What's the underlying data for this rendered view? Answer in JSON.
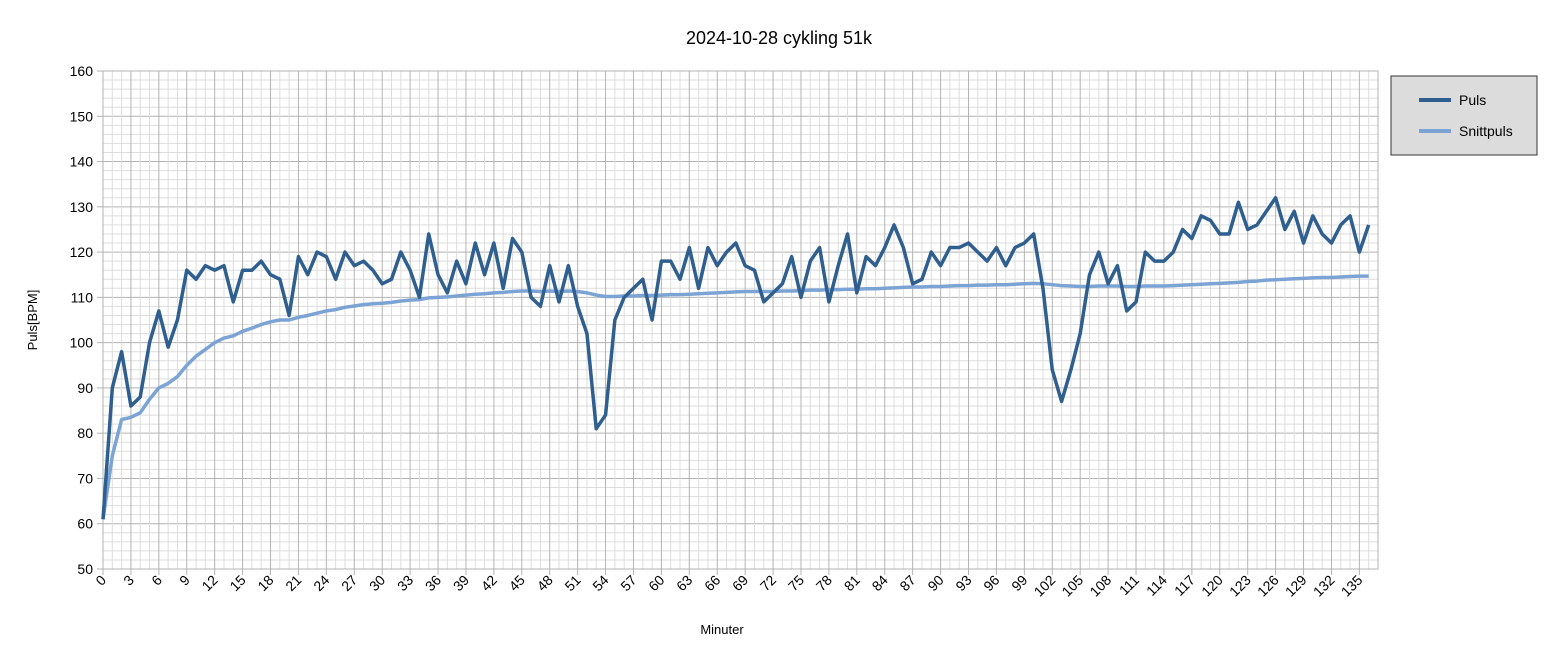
{
  "chart_data": {
    "type": "line",
    "title": "2024-10-28 cykling 51k",
    "xlabel": "Minuter",
    "ylabel": "Puls[BPM]",
    "ylim": [
      50,
      160
    ],
    "xlim": [
      0,
      137
    ],
    "yticks": [
      50,
      60,
      70,
      80,
      90,
      100,
      110,
      120,
      130,
      140,
      150,
      160
    ],
    "xticks": [
      0,
      3,
      6,
      9,
      12,
      15,
      18,
      21,
      24,
      27,
      30,
      33,
      36,
      39,
      42,
      45,
      48,
      51,
      54,
      57,
      60,
      63,
      66,
      69,
      72,
      75,
      78,
      81,
      84,
      87,
      90,
      93,
      96,
      99,
      102,
      105,
      108,
      111,
      114,
      117,
      120,
      123,
      126,
      129,
      132,
      135
    ],
    "grid": true,
    "legend_position": "right",
    "series": [
      {
        "name": "Puls",
        "color": "#2f5f8f",
        "values": [
          61,
          90,
          98,
          86,
          88,
          100,
          107,
          99,
          105,
          116,
          114,
          117,
          116,
          117,
          109,
          116,
          116,
          118,
          115,
          114,
          106,
          119,
          115,
          120,
          119,
          114,
          120,
          117,
          118,
          116,
          113,
          114,
          120,
          116,
          110,
          124,
          115,
          111,
          118,
          113,
          122,
          115,
          122,
          112,
          123,
          120,
          110,
          108,
          117,
          109,
          117,
          108,
          102,
          81,
          84,
          105,
          110,
          112,
          114,
          105,
          118,
          118,
          114,
          121,
          112,
          121,
          117,
          120,
          122,
          117,
          116,
          109,
          111,
          113,
          119,
          110,
          118,
          121,
          109,
          117,
          124,
          111,
          119,
          117,
          121,
          126,
          121,
          113,
          114,
          120,
          117,
          121,
          121,
          122,
          120,
          118,
          121,
          117,
          121,
          122,
          124,
          112,
          94,
          87,
          94,
          102,
          115,
          120,
          113,
          117,
          107,
          109,
          120,
          118,
          118,
          120,
          125,
          123,
          128,
          127,
          124,
          124,
          131,
          125,
          126,
          129,
          132,
          125,
          129,
          122,
          128,
          124,
          122,
          126,
          128,
          120,
          126
        ]
      },
      {
        "name": "Snittpuls",
        "color": "#7ba3d4",
        "values": [
          61,
          75,
          83,
          83.5,
          84.5,
          87.5,
          90,
          91,
          92.5,
          95,
          97,
          98.5,
          100,
          101,
          101.5,
          102.5,
          103.2,
          104,
          104.6,
          105,
          105,
          105.6,
          106,
          106.5,
          107,
          107.3,
          107.8,
          108.1,
          108.4,
          108.6,
          108.7,
          108.9,
          109.2,
          109.4,
          109.5,
          109.9,
          110,
          110.1,
          110.3,
          110.5,
          110.7,
          110.8,
          111,
          111.1,
          111.3,
          111.4,
          111.4,
          111.3,
          111.4,
          111.3,
          111.4,
          111.3,
          111,
          110.5,
          110.2,
          110.2,
          110.3,
          110.3,
          110.4,
          110.4,
          110.5,
          110.6,
          110.6,
          110.7,
          110.8,
          110.9,
          111,
          111.1,
          111.2,
          111.3,
          111.3,
          111.3,
          111.3,
          111.4,
          111.4,
          111.5,
          111.6,
          111.6,
          111.7,
          111.7,
          111.8,
          111.8,
          111.9,
          111.9,
          112,
          112.1,
          112.2,
          112.3,
          112.3,
          112.4,
          112.4,
          112.5,
          112.6,
          112.6,
          112.7,
          112.7,
          112.8,
          112.8,
          112.9,
          113,
          113.1,
          113,
          112.8,
          112.6,
          112.5,
          112.4,
          112.4,
          112.5,
          112.5,
          112.5,
          112.4,
          112.4,
          112.5,
          112.5,
          112.5,
          112.6,
          112.7,
          112.8,
          112.9,
          113,
          113.1,
          113.2,
          113.3,
          113.5,
          113.6,
          113.8,
          113.9,
          114,
          114.1,
          114.2,
          114.3,
          114.4,
          114.4,
          114.5,
          114.6,
          114.7,
          114.7
        ]
      }
    ]
  }
}
